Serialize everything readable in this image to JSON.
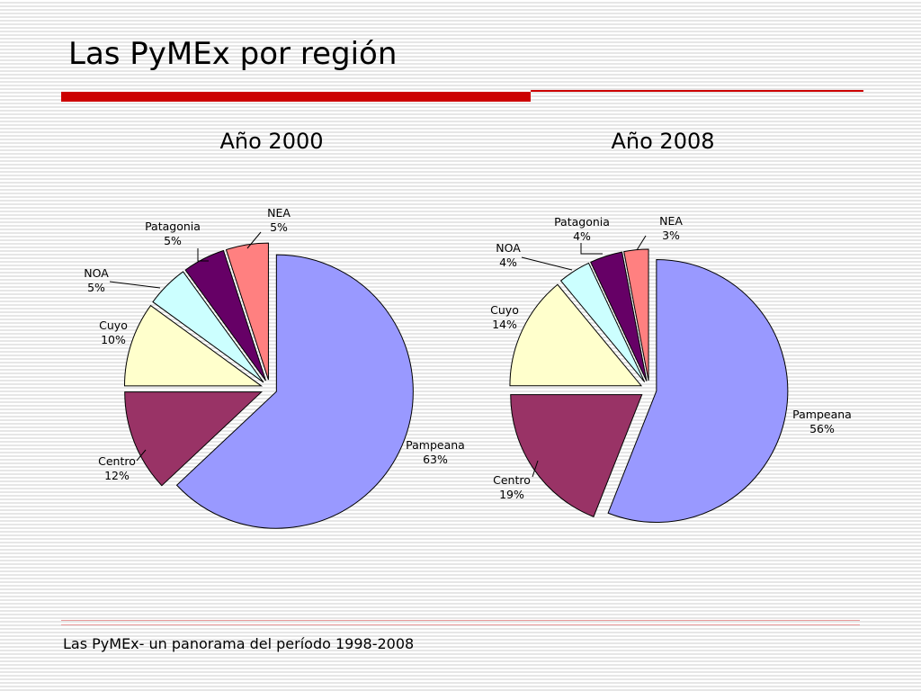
{
  "slide": {
    "title": "Las PyMEx por región",
    "footer": "Las PyMEx- un panorama del período 1998-2008"
  },
  "colors": {
    "Pampeana": "#9999ff",
    "Centro": "#993366",
    "Cuyo": "#ffffcc",
    "NOA": "#ccffff",
    "Patagonia": "#660066",
    "NEA": "#ff8080",
    "accent": "#cc0000"
  },
  "chart_data": [
    {
      "type": "pie",
      "title": "Año 2000",
      "categories": [
        "Pampeana",
        "Centro",
        "Cuyo",
        "NOA",
        "Patagonia",
        "NEA"
      ],
      "values": [
        63,
        12,
        10,
        5,
        5,
        5
      ],
      "labels": [
        "63%",
        "12%",
        "10%",
        "5%",
        "5%",
        "5%"
      ],
      "exploded": true
    },
    {
      "type": "pie",
      "title": "Año 2008",
      "categories": [
        "Pampeana",
        "Centro",
        "Cuyo",
        "NOA",
        "Patagonia",
        "NEA"
      ],
      "values": [
        56,
        19,
        14,
        4,
        4,
        3
      ],
      "labels": [
        "56%",
        "19%",
        "14%",
        "4%",
        "4%",
        "3%"
      ],
      "exploded": true
    }
  ]
}
